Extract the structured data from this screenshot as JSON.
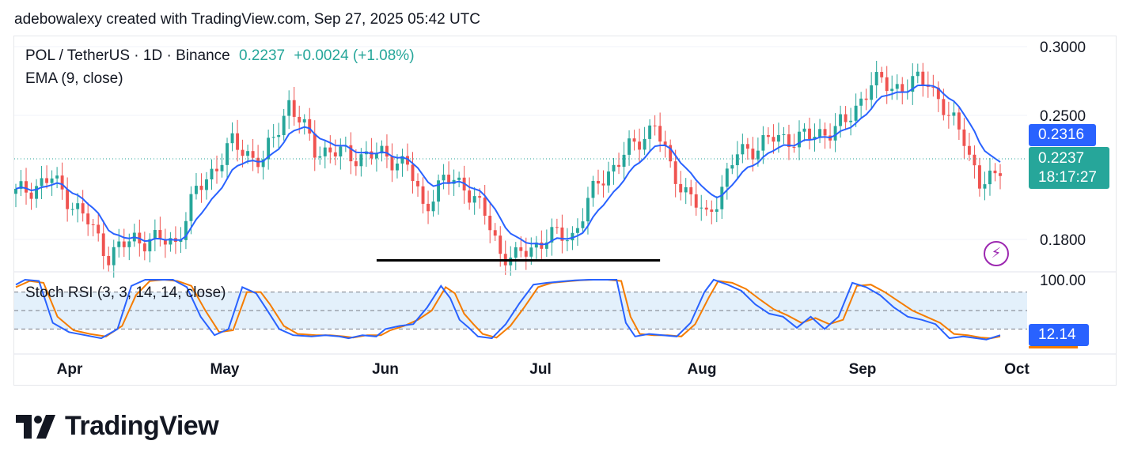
{
  "caption": "adebowalexy created with TradingView.com, Sep 27, 2025 05:42 UTC",
  "legend": {
    "symbol": "POL / TetherUS · 1D · Binance",
    "price": "0.2237",
    "change": "+0.0024 (+1.08%)",
    "ema": "EMA (9, close)",
    "stoch": "Stoch RSI (3, 3, 14, 14, close)"
  },
  "tags": {
    "ema_value": "0.2316",
    "last_price": "0.2237",
    "countdown": "18:17:27",
    "stoch_value": "12.14"
  },
  "brand": "TradingView",
  "colors": {
    "up": "#26a69a",
    "down": "#ef5350",
    "ema": "#2962ff",
    "stoch_k": "#2962ff",
    "stoch_d": "#f57c00",
    "band": "#e3f0fb",
    "alert": "#9c27b0"
  },
  "chart_data": [
    {
      "type": "candlestick",
      "title": "POL / TetherUS · 1D · Binance",
      "y_ticks": [
        "0.3000",
        "0.2500",
        "0.1800"
      ],
      "x_ticks": [
        "Apr",
        "May",
        "Jun",
        "Jul",
        "Aug",
        "Sep",
        "Oct"
      ],
      "series": [
        {
          "name": "EMA (9, close)"
        }
      ],
      "close_path": [
        {
          "date": "2025-03-20",
          "close": 0.213
        },
        {
          "date": "2025-03-27",
          "close": 0.222
        },
        {
          "date": "2025-04-03",
          "close": 0.196
        },
        {
          "date": "2025-04-07",
          "close": 0.176
        },
        {
          "date": "2025-04-12",
          "close": 0.186
        },
        {
          "date": "2025-04-20",
          "close": 0.184
        },
        {
          "date": "2025-04-24",
          "close": 0.214
        },
        {
          "date": "2025-05-01",
          "close": 0.243
        },
        {
          "date": "2025-05-07",
          "close": 0.232
        },
        {
          "date": "2025-05-12",
          "close": 0.268
        },
        {
          "date": "2025-05-17",
          "close": 0.24
        },
        {
          "date": "2025-05-24",
          "close": 0.236
        },
        {
          "date": "2025-05-31",
          "close": 0.236
        },
        {
          "date": "2025-06-04",
          "close": 0.23
        },
        {
          "date": "2025-06-07",
          "close": 0.205
        },
        {
          "date": "2025-06-11",
          "close": 0.221
        },
        {
          "date": "2025-06-15",
          "close": 0.219
        },
        {
          "date": "2025-06-19",
          "close": 0.2
        },
        {
          "date": "2025-06-22",
          "close": 0.178
        },
        {
          "date": "2025-06-25",
          "close": 0.174
        },
        {
          "date": "2025-07-01",
          "close": 0.187
        },
        {
          "date": "2025-07-06",
          "close": 0.188
        },
        {
          "date": "2025-07-11",
          "close": 0.22
        },
        {
          "date": "2025-07-16",
          "close": 0.236
        },
        {
          "date": "2025-07-22",
          "close": 0.255
        },
        {
          "date": "2025-07-25",
          "close": 0.228
        },
        {
          "date": "2025-08-01",
          "close": 0.198
        },
        {
          "date": "2025-08-07",
          "close": 0.237
        },
        {
          "date": "2025-08-14",
          "close": 0.246
        },
        {
          "date": "2025-08-21",
          "close": 0.247
        },
        {
          "date": "2025-08-28",
          "close": 0.255
        },
        {
          "date": "2025-09-02",
          "close": 0.28
        },
        {
          "date": "2025-09-08",
          "close": 0.277
        },
        {
          "date": "2025-09-13",
          "close": 0.282
        },
        {
          "date": "2025-09-17",
          "close": 0.258
        },
        {
          "date": "2025-09-20",
          "close": 0.248
        },
        {
          "date": "2025-09-23",
          "close": 0.218
        },
        {
          "date": "2025-09-27",
          "close": 0.2237
        }
      ],
      "support_line": {
        "price": 0.173,
        "from": "2025-05-29",
        "to": "2025-07-23"
      }
    },
    {
      "type": "line",
      "title": "Stoch RSI (3, 3, 14, 14, close)",
      "y_ticks": [
        "100.00"
      ],
      "bands": [
        80,
        50,
        20
      ],
      "series": [
        {
          "name": "K",
          "points": [
            [
              0,
              92
            ],
            [
              4,
              100
            ],
            [
              10,
              98
            ],
            [
              16,
              30
            ],
            [
              23,
              15
            ],
            [
              30,
              10
            ],
            [
              37,
              5
            ],
            [
              44,
              20
            ],
            [
              50,
              90
            ],
            [
              56,
              100
            ],
            [
              62,
              100
            ],
            [
              68,
              100
            ],
            [
              74,
              88
            ],
            [
              80,
              40
            ],
            [
              86,
              10
            ],
            [
              92,
              20
            ],
            [
              98,
              88
            ],
            [
              104,
              78
            ],
            [
              108,
              55
            ],
            [
              114,
              20
            ],
            [
              120,
              10
            ],
            [
              128,
              8
            ],
            [
              134,
              10
            ],
            [
              140,
              8
            ],
            [
              144,
              5
            ],
            [
              150,
              10
            ],
            [
              156,
              8
            ],
            [
              160,
              20
            ],
            [
              166,
              25
            ],
            [
              172,
              28
            ],
            [
              178,
              55
            ],
            [
              184,
              90
            ],
            [
              188,
              70
            ],
            [
              192,
              35
            ],
            [
              196,
              22
            ],
            [
              200,
              8
            ],
            [
              206,
              5
            ],
            [
              212,
              28
            ],
            [
              218,
              62
            ],
            [
              224,
              92
            ],
            [
              230,
              95
            ],
            [
              236,
              97
            ],
            [
              242,
              99
            ],
            [
              248,
              100
            ],
            [
              254,
              100
            ],
            [
              260,
              100
            ],
            [
              264,
              30
            ],
            [
              268,
              8
            ],
            [
              274,
              12
            ],
            [
              280,
              10
            ],
            [
              286,
              8
            ],
            [
              292,
              30
            ],
            [
              298,
              80
            ],
            [
              302,
              100
            ],
            [
              308,
              92
            ],
            [
              314,
              82
            ],
            [
              320,
              60
            ],
            [
              326,
              45
            ],
            [
              332,
              40
            ],
            [
              338,
              22
            ],
            [
              344,
              40
            ],
            [
              350,
              20
            ],
            [
              356,
              40
            ],
            [
              362,
              95
            ],
            [
              368,
              88
            ],
            [
              374,
              75
            ],
            [
              380,
              55
            ],
            [
              386,
              40
            ],
            [
              392,
              35
            ],
            [
              398,
              28
            ],
            [
              404,
              5
            ],
            [
              410,
              8
            ],
            [
              416,
              5
            ],
            [
              420,
              3
            ],
            [
              426,
              10
            ]
          ]
        },
        {
          "name": "D",
          "points": [
            [
              0,
              88
            ],
            [
              6,
              98
            ],
            [
              12,
              95
            ],
            [
              18,
              40
            ],
            [
              25,
              18
            ],
            [
              32,
              12
            ],
            [
              39,
              8
            ],
            [
              46,
              25
            ],
            [
              52,
              75
            ],
            [
              58,
              98
            ],
            [
              64,
              100
            ],
            [
              70,
              98
            ],
            [
              76,
              90
            ],
            [
              82,
              50
            ],
            [
              88,
              15
            ],
            [
              94,
              18
            ],
            [
              100,
              80
            ],
            [
              106,
              80
            ],
            [
              110,
              60
            ],
            [
              116,
              25
            ],
            [
              122,
              12
            ],
            [
              130,
              10
            ],
            [
              136,
              10
            ],
            [
              142,
              8
            ],
            [
              146,
              6
            ],
            [
              152,
              10
            ],
            [
              158,
              10
            ],
            [
              162,
              18
            ],
            [
              168,
              25
            ],
            [
              174,
              35
            ],
            [
              180,
              50
            ],
            [
              186,
              88
            ],
            [
              190,
              78
            ],
            [
              194,
              45
            ],
            [
              198,
              28
            ],
            [
              202,
              12
            ],
            [
              208,
              6
            ],
            [
              214,
              25
            ],
            [
              220,
              55
            ],
            [
              226,
              88
            ],
            [
              232,
              95
            ],
            [
              238,
              97
            ],
            [
              244,
              99
            ],
            [
              250,
              100
            ],
            [
              256,
              100
            ],
            [
              262,
              98
            ],
            [
              266,
              40
            ],
            [
              270,
              12
            ],
            [
              276,
              10
            ],
            [
              282,
              10
            ],
            [
              288,
              8
            ],
            [
              294,
              28
            ],
            [
              300,
              72
            ],
            [
              304,
              98
            ],
            [
              310,
              95
            ],
            [
              316,
              85
            ],
            [
              322,
              68
            ],
            [
              328,
              52
            ],
            [
              334,
              42
            ],
            [
              340,
              30
            ],
            [
              346,
              38
            ],
            [
              352,
              28
            ],
            [
              358,
              35
            ],
            [
              364,
              90
            ],
            [
              370,
              92
            ],
            [
              376,
              80
            ],
            [
              382,
              65
            ],
            [
              388,
              50
            ],
            [
              394,
              40
            ],
            [
              400,
              30
            ],
            [
              406,
              12
            ],
            [
              412,
              10
            ],
            [
              418,
              6
            ],
            [
              422,
              5
            ],
            [
              426,
              8
            ]
          ]
        }
      ]
    }
  ]
}
